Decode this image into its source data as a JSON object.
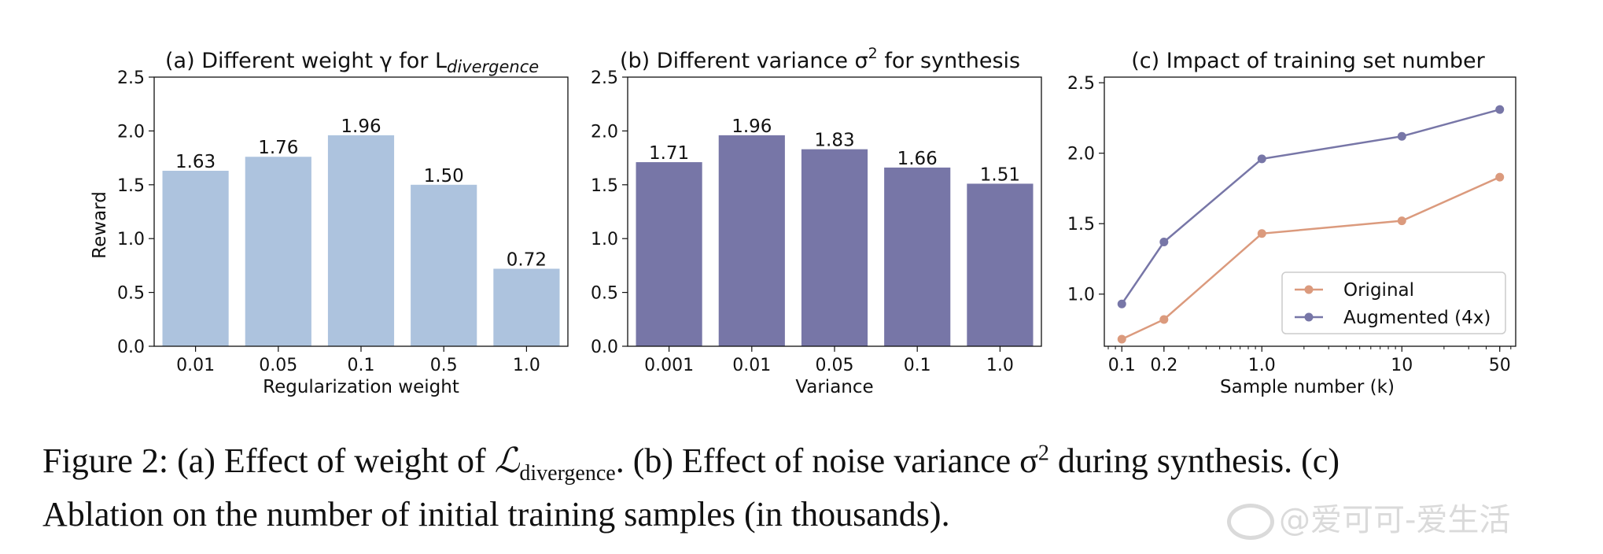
{
  "chart_data": [
    {
      "type": "bar",
      "title": "(a) Different weight γ for L",
      "title_subscript": "divergence",
      "xlabel": "Regularization weight",
      "ylabel": "Reward",
      "categories": [
        "0.01",
        "0.05",
        "0.1",
        "0.5",
        "1.0"
      ],
      "values": [
        1.63,
        1.76,
        1.96,
        1.5,
        0.72
      ],
      "value_labels": [
        "1.63",
        "1.76",
        "1.96",
        "1.50",
        "0.72"
      ],
      "ylim": [
        0,
        2.5
      ],
      "yticks": [
        "0.0",
        "0.5",
        "1.0",
        "1.5",
        "2.0",
        "2.5"
      ],
      "color": "#adc3de"
    },
    {
      "type": "bar",
      "title": "(b) Different variance σ",
      "title_superscript": "2",
      "title_suffix": " for synthesis",
      "xlabel": "Variance",
      "ylabel": "",
      "categories": [
        "0.001",
        "0.01",
        "0.05",
        "0.1",
        "1.0"
      ],
      "values": [
        1.71,
        1.96,
        1.83,
        1.66,
        1.51
      ],
      "value_labels": [
        "1.71",
        "1.96",
        "1.83",
        "1.66",
        "1.51"
      ],
      "ylim": [
        0,
        2.5
      ],
      "yticks": [
        "0.0",
        "0.5",
        "1.0",
        "1.5",
        "2.0",
        "2.5"
      ],
      "color": "#7776a7"
    },
    {
      "type": "line",
      "title": "(c) Impact of training set number",
      "xlabel": "Sample number (k)",
      "ylabel": "",
      "xscale": "log",
      "x": [
        0.1,
        0.2,
        1.0,
        10,
        50
      ],
      "xtick_labels": [
        "0.1",
        "0.2",
        "1.0",
        "10",
        "50"
      ],
      "xlim": [
        0.075,
        65
      ],
      "ylim": [
        0.63,
        2.54
      ],
      "yticks": [
        "1.0",
        "1.5",
        "2.0",
        "2.5"
      ],
      "legend": "bottom-right",
      "series": [
        {
          "name": "Original",
          "values": [
            0.68,
            0.82,
            1.43,
            1.52,
            1.83
          ],
          "color": "#db9a7d"
        },
        {
          "name": "Augmented (4x)",
          "values": [
            0.93,
            1.37,
            1.96,
            2.12,
            2.31
          ],
          "color": "#7776a7"
        }
      ]
    }
  ],
  "caption": {
    "line1_prefix": "Figure 2: (a) Effect of weight of ",
    "line1_symbol": "ℒ",
    "line1_symbol_sub": "divergence",
    "line1_mid": ". (b) Effect of noise variance σ",
    "line1_sup": "2",
    "line1_suffix": " during synthesis. (c)",
    "line2": "Ablation on the number of initial training samples (in thousands)."
  },
  "watermark": "@爱可可-爱生活"
}
